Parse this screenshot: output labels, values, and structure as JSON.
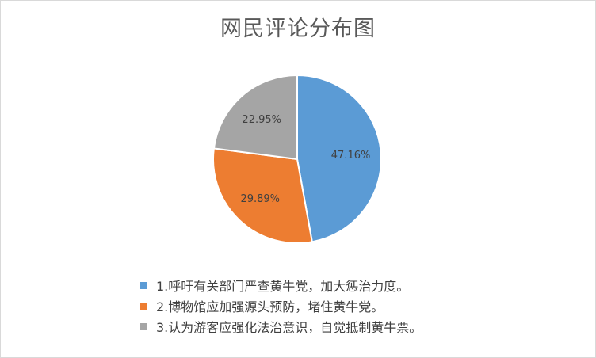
{
  "chart_data": {
    "type": "pie",
    "title": "网民评论分布图",
    "series": [
      {
        "label": "1.呼吁有关部门严查黄牛党，加大惩治力度。",
        "value": 47.16,
        "display": "47.16%",
        "color": "#5b9bd5"
      },
      {
        "label": "2.博物馆应加强源头预防，堵住黄牛党。",
        "value": 29.89,
        "display": "29.89%",
        "color": "#ed7d31"
      },
      {
        "label": "3.认为游客应强化法治意识，自觉抵制黄牛票。",
        "value": 22.95,
        "display": "22.95%",
        "color": "#a5a5a5"
      }
    ],
    "legend_position": "bottom",
    "start_angle": "12 o'clock, clockwise"
  }
}
